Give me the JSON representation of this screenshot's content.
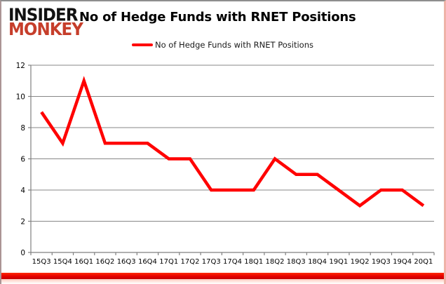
{
  "brand": {
    "line1": "INSIDER",
    "line2": "MONKEY",
    "monkey_color": "#c63e2b"
  },
  "header": {
    "title": "No of Hedge Funds with RNET Positions"
  },
  "legend": {
    "label": "No of Hedge Funds with RNET Positions",
    "marker_color": "#ff0000"
  },
  "chart_data": {
    "type": "line",
    "title": "No of Hedge Funds with RNET Positions",
    "categories": [
      "15Q3",
      "15Q4",
      "16Q1",
      "16Q2",
      "16Q3",
      "16Q4",
      "17Q1",
      "17Q2",
      "17Q3",
      "17Q4",
      "18Q1",
      "18Q2",
      "18Q3",
      "18Q4",
      "19Q1",
      "19Q2",
      "19Q3",
      "19Q4",
      "20Q1"
    ],
    "series": [
      {
        "name": "No of Hedge Funds with RNET Positions",
        "color": "#ff0000",
        "values": [
          9,
          7,
          11,
          7,
          7,
          7,
          6,
          6,
          4,
          4,
          4,
          6,
          5,
          5,
          4,
          3,
          4,
          4,
          3
        ]
      }
    ],
    "xlabel": "",
    "ylabel": "",
    "ylim": [
      0,
      12
    ],
    "yticks": [
      0,
      2,
      4,
      6,
      8,
      10,
      12
    ],
    "grid": "horizontal",
    "gridline_color": "#878787",
    "axis_color": "#808080",
    "tick_label_color": "#000000",
    "legend_position": "top-center"
  }
}
